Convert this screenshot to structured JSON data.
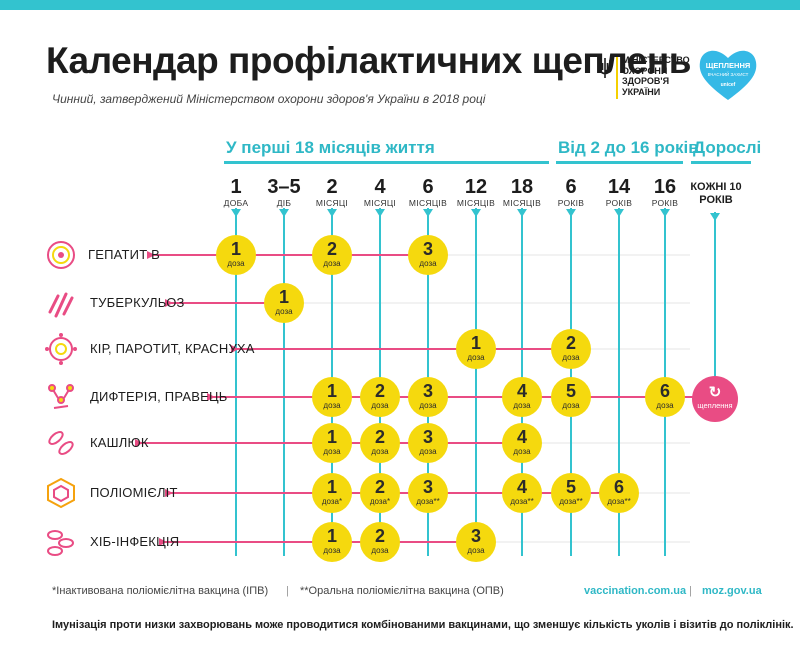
{
  "header": {
    "title": "Календар профілактичних щеплень",
    "subtitle": "Чинний, затверджений Міністерством охорони здоров'я України в 2018 році",
    "ministry_lines": [
      "МІНІСТЕРСТВО",
      "ОХОРОНИ",
      "ЗДОРОВ'Я",
      "УКРАЇНИ"
    ],
    "badge_title_1": "ЩЕПЛЕННЯ",
    "badge_title_2": "ВЖЕ ЗАХИСТ",
    "badge_sub": "ВЧАСНИЙ ЗАХИСТ",
    "badge_brand": "unicef"
  },
  "sections": {
    "first": "У перші 18 місяців життя",
    "second": "Від 2 до 16 років",
    "adults": "Дорослі"
  },
  "ages": [
    {
      "n": "1",
      "u": "ДОБА"
    },
    {
      "n": "3–5",
      "u": "ДІБ"
    },
    {
      "n": "2",
      "u": "МІСЯЦІ"
    },
    {
      "n": "4",
      "u": "МІСЯЦІ"
    },
    {
      "n": "6",
      "u": "МІСЯЦІВ"
    },
    {
      "n": "12",
      "u": "МІСЯЦІВ"
    },
    {
      "n": "18",
      "u": "МІСЯЦІВ"
    },
    {
      "n": "6",
      "u": "РОКІВ"
    },
    {
      "n": "14",
      "u": "РОКІВ"
    },
    {
      "n": "16",
      "u": "РОКІВ"
    }
  ],
  "age_adult": "КОЖНІ 10 РОКІВ",
  "rows": [
    {
      "label": "ГЕПАТИТ В",
      "icon": "hepatitis-b-virus-icon"
    },
    {
      "label": "ТУБЕРКУЛЬОЗ",
      "icon": "tuberculosis-bacteria-icon"
    },
    {
      "label": "КІР, ПАРОТИТ, КРАСНУХА",
      "icon": "measles-virus-icon"
    },
    {
      "label": "ДИФТЕРІЯ, ПРАВЕЦЬ",
      "icon": "diphtheria-bacteria-icon"
    },
    {
      "label": "КАШЛЮК",
      "icon": "pertussis-bacteria-icon"
    },
    {
      "label": "ПОЛІОМІЄЛІТ",
      "icon": "polio-virus-icon"
    },
    {
      "label": "ХІБ-ІНФЕКЦІЯ",
      "icon": "hib-bacteria-icon"
    }
  ],
  "doses": [
    {
      "row": 0,
      "col": 0,
      "n": "1",
      "l": "доза"
    },
    {
      "row": 0,
      "col": 2,
      "n": "2",
      "l": "доза"
    },
    {
      "row": 0,
      "col": 4,
      "n": "3",
      "l": "доза"
    },
    {
      "row": 1,
      "col": 1,
      "n": "1",
      "l": "доза"
    },
    {
      "row": 2,
      "col": 5,
      "n": "1",
      "l": "доза"
    },
    {
      "row": 2,
      "col": 7,
      "n": "2",
      "l": "доза"
    },
    {
      "row": 3,
      "col": 2,
      "n": "1",
      "l": "доза"
    },
    {
      "row": 3,
      "col": 3,
      "n": "2",
      "l": "доза"
    },
    {
      "row": 3,
      "col": 4,
      "n": "3",
      "l": "доза"
    },
    {
      "row": 3,
      "col": 6,
      "n": "4",
      "l": "доза"
    },
    {
      "row": 3,
      "col": 7,
      "n": "5",
      "l": "доза"
    },
    {
      "row": 3,
      "col": 9,
      "n": "6",
      "l": "доза"
    },
    {
      "row": 4,
      "col": 2,
      "n": "1",
      "l": "доза"
    },
    {
      "row": 4,
      "col": 3,
      "n": "2",
      "l": "доза"
    },
    {
      "row": 4,
      "col": 4,
      "n": "3",
      "l": "доза"
    },
    {
      "row": 4,
      "col": 6,
      "n": "4",
      "l": "доза"
    },
    {
      "row": 5,
      "col": 2,
      "n": "1",
      "l": "доза*"
    },
    {
      "row": 5,
      "col": 3,
      "n": "2",
      "l": "доза*"
    },
    {
      "row": 5,
      "col": 4,
      "n": "3",
      "l": "доза**"
    },
    {
      "row": 5,
      "col": 6,
      "n": "4",
      "l": "доза**"
    },
    {
      "row": 5,
      "col": 7,
      "n": "5",
      "l": "доза**"
    },
    {
      "row": 5,
      "col": 8,
      "n": "6",
      "l": "доза**"
    },
    {
      "row": 6,
      "col": 2,
      "n": "1",
      "l": "доза"
    },
    {
      "row": 6,
      "col": 3,
      "n": "2",
      "l": "доза"
    },
    {
      "row": 6,
      "col": 5,
      "n": "3",
      "l": "доза"
    }
  ],
  "adult_dose": {
    "icon": "↻",
    "label": "щеплення"
  },
  "footer": {
    "note_ipv": "*Інактивована поліомієлітна вакцина (ІПВ)",
    "divider": "|",
    "note_opv": "**Оральна поліомієлітна вакцина (ОПВ)",
    "link1": "vaccination.com.ua",
    "link2": "moz.gov.ua",
    "bottom": "Імунізація проти низки захворювань може проводитися комбінованими вакцинами, що зменшує кількість уколів і візитів до поліклінік."
  },
  "colors": {
    "teal": "#33c3cf",
    "pink": "#e94c84",
    "yellow": "#f5d90e"
  }
}
